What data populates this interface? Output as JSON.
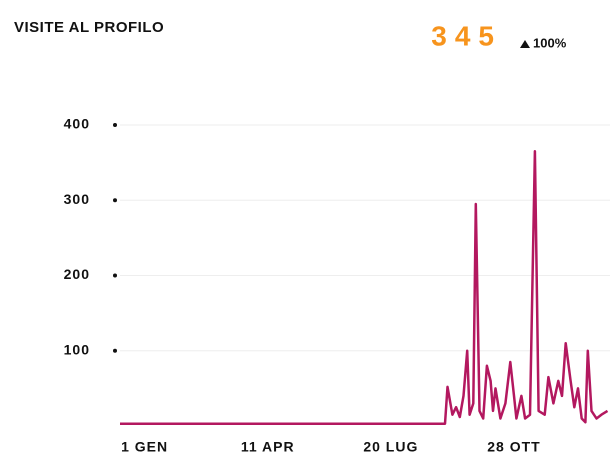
{
  "chart_data": {
    "type": "line",
    "title": "VISITE AL PROFILO",
    "total": 345,
    "change": {
      "value": 100,
      "label": "100%"
    },
    "color": "#b3185f",
    "accent_color": "#f7941d",
    "grid": true,
    "x": [
      -20,
      244,
      246,
      250,
      253,
      256,
      259,
      262,
      264,
      267,
      269,
      272,
      275,
      278,
      281,
      283,
      285,
      289,
      293,
      297,
      300,
      302,
      306,
      309,
      313,
      317,
      320,
      325,
      328,
      332,
      336,
      339,
      342,
      346,
      349,
      352,
      355,
      358,
      360,
      363,
      367,
      371,
      376
    ],
    "series": [
      {
        "name": "VISITE AL PROFILO",
        "color": "#b3185f",
        "values": [
          3,
          3,
          52,
          15,
          25,
          12,
          40,
          100,
          15,
          30,
          295,
          20,
          10,
          80,
          60,
          20,
          50,
          10,
          30,
          85,
          40,
          10,
          40,
          10,
          15,
          365,
          20,
          15,
          65,
          30,
          60,
          40,
          110,
          60,
          25,
          50,
          10,
          5,
          100,
          20,
          10,
          15,
          20
        ]
      }
    ],
    "xlim": [
      -20,
      378
    ],
    "xticks": [
      {
        "value": 0,
        "label": "1 GEN"
      },
      {
        "value": 100,
        "label": "11 APR"
      },
      {
        "value": 200,
        "label": "20 LUG"
      },
      {
        "value": 300,
        "label": "28 OTT"
      }
    ],
    "ylim": [
      0,
      400
    ],
    "yticks": [
      100,
      200,
      300,
      400
    ]
  }
}
